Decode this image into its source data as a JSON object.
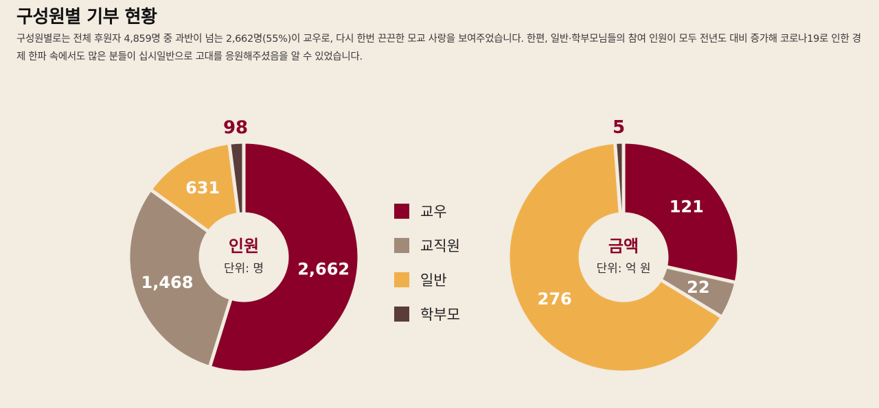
{
  "header": {
    "title": "구성원별 기부 현황",
    "description": "구성원별로는 전체 후원자 4,859명 중 과반이 넘는 2,662명(55%)이 교우로, 다시 한번 끈끈한 모교 사랑을 보여주었습니다. 한편, 일반·학부모님들의 참여 인원이 모두 전년도 대비 증가해 코로나19로 인한 경제 한파 속에서도 많은 분들이 십시일반으로 고대를 응원해주셨음을 알 수 있었습니다."
  },
  "legend": {
    "items": [
      {
        "label": "교우",
        "color": "#8a0029"
      },
      {
        "label": "교직원",
        "color": "#a18b78"
      },
      {
        "label": "일반",
        "color": "#efb04c"
      },
      {
        "label": "학부모",
        "color": "#5a3d3a"
      }
    ]
  },
  "chart_data": [
    {
      "type": "pie",
      "center_title": "인원",
      "center_unit": "단위: 명",
      "categories": [
        "교우",
        "교직원",
        "일반",
        "학부모"
      ],
      "values": [
        2662,
        1468,
        631,
        98
      ],
      "value_labels": [
        "2,662",
        "1,468",
        "631",
        "98"
      ],
      "colors": [
        "#8a0029",
        "#a18b78",
        "#efb04c",
        "#5a3d3a"
      ]
    },
    {
      "type": "pie",
      "center_title": "금액",
      "center_unit": "단위: 억 원",
      "categories": [
        "교우",
        "교직원",
        "일반",
        "학부모"
      ],
      "values": [
        121,
        22,
        276,
        5
      ],
      "value_labels": [
        "121",
        "22",
        "276",
        "5"
      ],
      "colors": [
        "#8a0029",
        "#a18b78",
        "#efb04c",
        "#5a3d3a"
      ]
    }
  ]
}
